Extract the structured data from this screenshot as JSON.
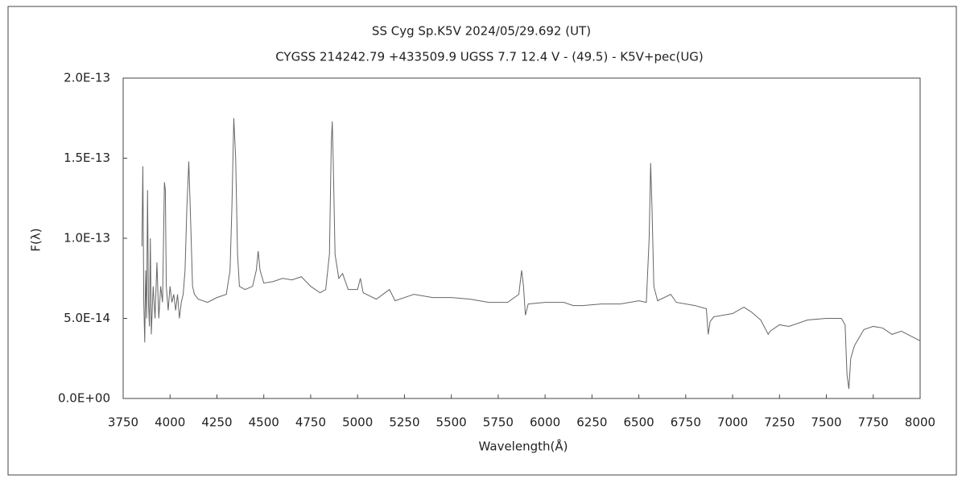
{
  "chart_data": {
    "type": "line",
    "title": "SS Cyg   Sp.K5V   2024/05/29.692 (UT)",
    "subtitle": "CYGSS 214242.79 +433509.9 UGSS 7.7 12.4 V - (49.5) - K5V+pec(UG)",
    "x_label": "Wavelength(Å)",
    "y_label": "F(λ)",
    "color": "#666666",
    "xlim": [
      3750,
      8000
    ],
    "xticks": [
      3750,
      4000,
      4250,
      4500,
      4750,
      5000,
      5250,
      5500,
      5750,
      6000,
      6250,
      6500,
      6750,
      7000,
      7250,
      7500,
      7750,
      8000
    ],
    "ylim": [
      0,
      2e-13
    ],
    "yticks": [
      {
        "value": 0,
        "label": "0.0E+00"
      },
      {
        "value": 5e-14,
        "label": "5.0E-14"
      },
      {
        "value": 1e-13,
        "label": "1.0E-13"
      },
      {
        "value": 1.5e-13,
        "label": "1.5E-13"
      },
      {
        "value": 2e-13,
        "label": "2.0E-13"
      }
    ],
    "x": [
      3850,
      3855,
      3860,
      3865,
      3870,
      3875,
      3880,
      3885,
      3890,
      3895,
      3900,
      3910,
      3920,
      3930,
      3940,
      3950,
      3960,
      3970,
      3975,
      3980,
      3990,
      4000,
      4010,
      4020,
      4030,
      4040,
      4050,
      4060,
      4070,
      4080,
      4090,
      4100,
      4110,
      4120,
      4130,
      4150,
      4200,
      4250,
      4300,
      4320,
      4330,
      4340,
      4350,
      4360,
      4370,
      4400,
      4440,
      4460,
      4470,
      4480,
      4500,
      4550,
      4600,
      4650,
      4700,
      4750,
      4800,
      4830,
      4850,
      4860,
      4865,
      4870,
      4880,
      4900,
      4920,
      4950,
      5000,
      5015,
      5030,
      5100,
      5170,
      5200,
      5300,
      5400,
      5500,
      5600,
      5700,
      5800,
      5860,
      5875,
      5885,
      5895,
      5910,
      6000,
      6100,
      6150,
      6200,
      6300,
      6400,
      6500,
      6540,
      6555,
      6563,
      6570,
      6580,
      6600,
      6670,
      6700,
      6800,
      6860,
      6870,
      6880,
      6900,
      7000,
      7060,
      7100,
      7150,
      7190,
      7200,
      7250,
      7300,
      7400,
      7500,
      7580,
      7600,
      7610,
      7620,
      7630,
      7650,
      7700,
      7750,
      7800,
      7850,
      7900,
      7950,
      8000
    ],
    "values": [
      9.5e-14,
      1.45e-13,
      6e-14,
      3.5e-14,
      8e-14,
      5e-14,
      1.3e-13,
      6e-14,
      4.5e-14,
      1e-13,
      4e-14,
      7e-14,
      5e-14,
      8.5e-14,
      5e-14,
      7e-14,
      6e-14,
      1.35e-13,
      1.3e-13,
      7e-14,
      5.5e-14,
      7e-14,
      6e-14,
      6.5e-14,
      5.5e-14,
      6.5e-14,
      5e-14,
      6e-14,
      6.5e-14,
      8e-14,
      1.2e-13,
      1.48e-13,
      1.1e-13,
      7e-14,
      6.5e-14,
      6.2e-14,
      6e-14,
      6.3e-14,
      6.5e-14,
      8e-14,
      1.2e-13,
      1.75e-13,
      1.5e-13,
      9e-14,
      7e-14,
      6.8e-14,
      7e-14,
      8e-14,
      9.2e-14,
      8e-14,
      7.2e-14,
      7.3e-14,
      7.5e-14,
      7.4e-14,
      7.6e-14,
      7e-14,
      6.6e-14,
      6.8e-14,
      9e-14,
      1.6e-13,
      1.73e-13,
      1.5e-13,
      9e-14,
      7.5e-14,
      7.8e-14,
      6.8e-14,
      6.8e-14,
      7.5e-14,
      6.6e-14,
      6.2e-14,
      6.8e-14,
      6.1e-14,
      6.5e-14,
      6.3e-14,
      6.3e-14,
      6.2e-14,
      6e-14,
      6e-14,
      6.5e-14,
      8e-14,
      7e-14,
      5.2e-14,
      5.9e-14,
      6e-14,
      6e-14,
      5.8e-14,
      5.8e-14,
      5.9e-14,
      5.9e-14,
      6.1e-14,
      6e-14,
      1e-13,
      1.47e-13,
      1.2e-13,
      7e-14,
      6.1e-14,
      6.5e-14,
      6e-14,
      5.8e-14,
      5.6e-14,
      4e-14,
      4.8e-14,
      5.1e-14,
      5.3e-14,
      5.7e-14,
      5.4e-14,
      4.9e-14,
      4e-14,
      4.2e-14,
      4.6e-14,
      4.5e-14,
      4.9e-14,
      5e-14,
      5e-14,
      4.6e-14,
      1.5e-14,
      6e-15,
      2.5e-14,
      3.3e-14,
      4.3e-14,
      4.5e-14,
      4.4e-14,
      4e-14,
      4.2e-14,
      3.9e-14,
      3.6e-14
    ]
  }
}
